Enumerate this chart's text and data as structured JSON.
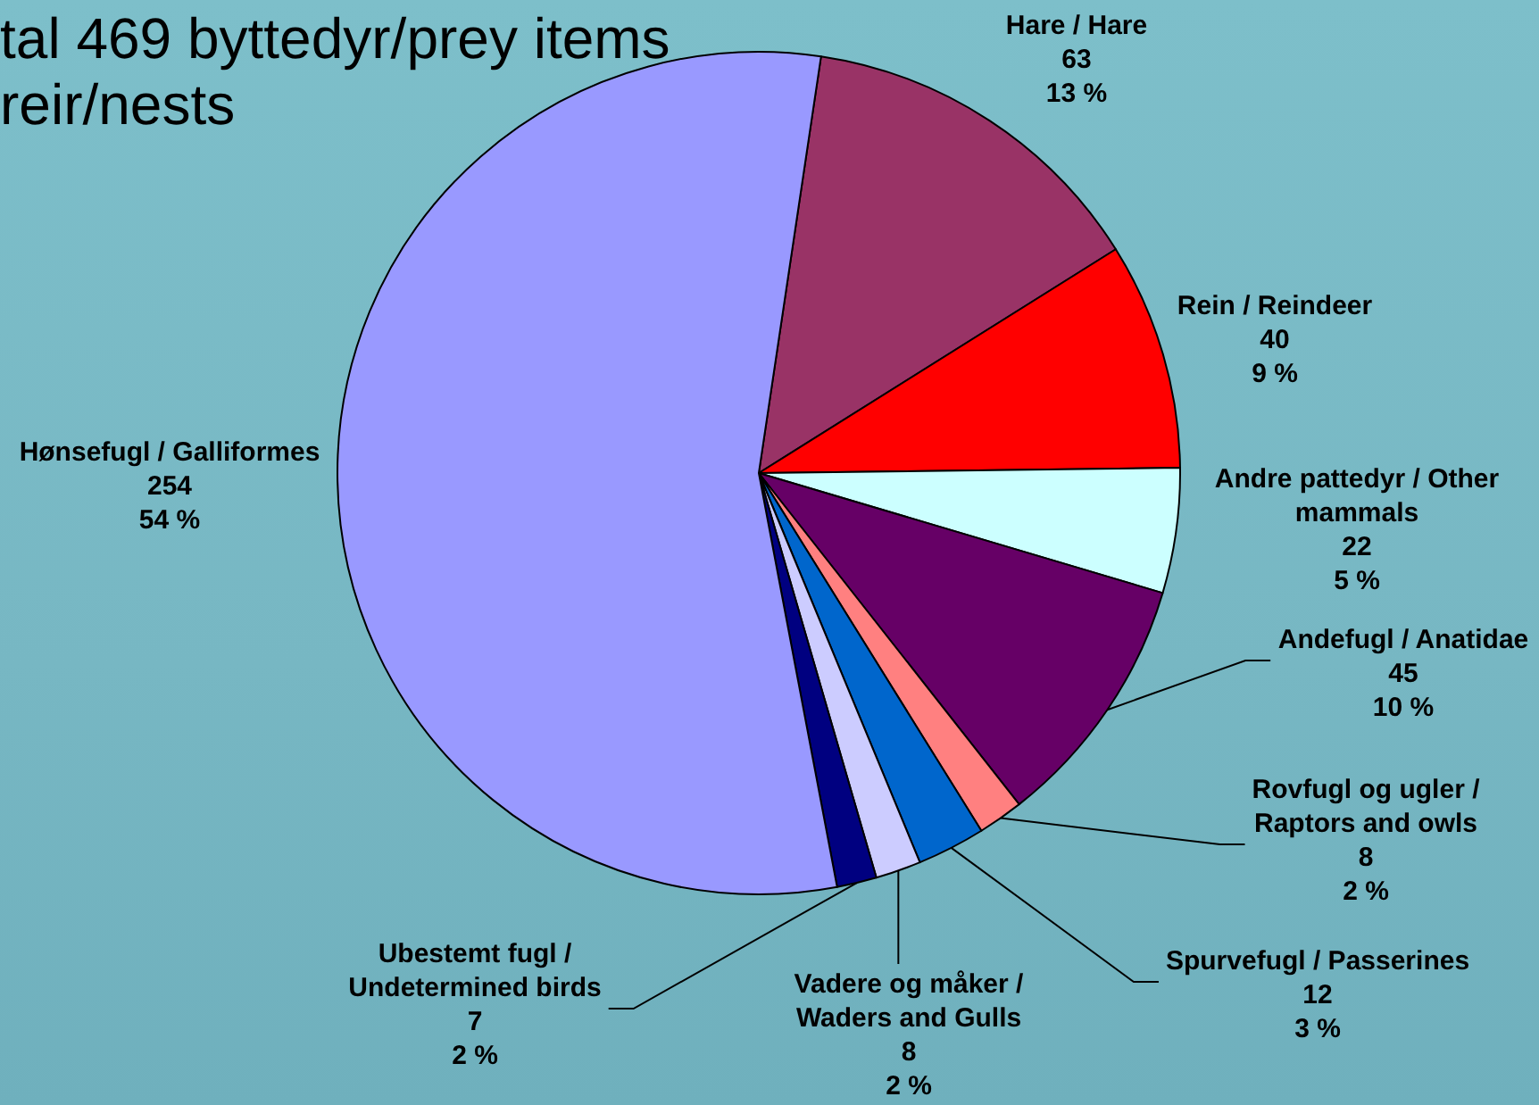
{
  "chart_data": {
    "type": "pie",
    "title": "tal 469 byttedyr/prey items\nreir/nests",
    "categories": [
      "Hare / Hare",
      "Rein / Reindeer",
      "Andre pattedyr / Other mammals",
      "Andefugl / Anatidae",
      "Rovfugl og ugler / Raptors and owls",
      "Spurvefugl / Passerines",
      "Vadere og måker / Waders and Gulls",
      "Ubestemt fugl / Undetermined birds",
      "Hønsefugl / Galliformes"
    ],
    "values": [
      63,
      40,
      22,
      45,
      8,
      12,
      8,
      7,
      254
    ],
    "colors": [
      "#993366",
      "#ff0000",
      "#ccffff",
      "#660066",
      "#ff8080",
      "#0066cc",
      "#ccccff",
      "#000080",
      "#9999ff"
    ],
    "value_labels": [
      "63\n13 %",
      "40\n9 %",
      "22\n5 %",
      "45\n10 %",
      "8\n2 %",
      "12\n3 %",
      "8\n2 %",
      "7\n2 %",
      "254\n54 %"
    ],
    "legend": false
  }
}
